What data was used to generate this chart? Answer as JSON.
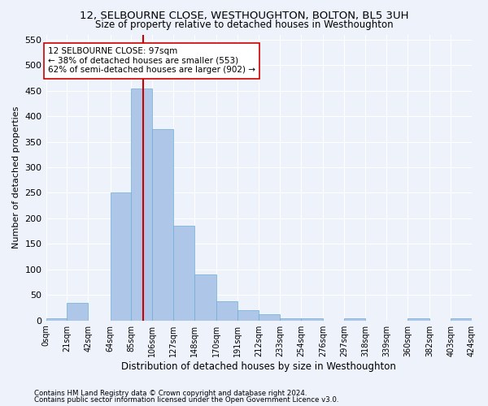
{
  "title": "12, SELBOURNE CLOSE, WESTHOUGHTON, BOLTON, BL5 3UH",
  "subtitle": "Size of property relative to detached houses in Westhoughton",
  "xlabel": "Distribution of detached houses by size in Westhoughton",
  "ylabel": "Number of detached properties",
  "footer_line1": "Contains HM Land Registry data © Crown copyright and database right 2024.",
  "footer_line2": "Contains public sector information licensed under the Open Government Licence v3.0.",
  "bin_edges": [
    0,
    21,
    42,
    64,
    85,
    106,
    127,
    148,
    170,
    191,
    212,
    233,
    254,
    276,
    297,
    318,
    339,
    360,
    382,
    403,
    424
  ],
  "bin_labels": [
    "0sqm",
    "21sqm",
    "42sqm",
    "64sqm",
    "85sqm",
    "106sqm",
    "127sqm",
    "148sqm",
    "170sqm",
    "191sqm",
    "212sqm",
    "233sqm",
    "254sqm",
    "276sqm",
    "297sqm",
    "318sqm",
    "339sqm",
    "360sqm",
    "382sqm",
    "403sqm",
    "424sqm"
  ],
  "bar_heights": [
    4,
    35,
    0,
    250,
    455,
    375,
    185,
    90,
    38,
    20,
    12,
    5,
    5,
    0,
    5,
    0,
    0,
    5,
    0,
    4
  ],
  "bar_color": "#aec6e8",
  "bar_edge_color": "#6aaed6",
  "vline_x": 97,
  "vline_color": "#cc0000",
  "ylim": [
    0,
    560
  ],
  "yticks": [
    0,
    50,
    100,
    150,
    200,
    250,
    300,
    350,
    400,
    450,
    500,
    550
  ],
  "annotation_line1": "12 SELBOURNE CLOSE: 97sqm",
  "annotation_line2": "← 38% of detached houses are smaller (553)",
  "annotation_line3": "62% of semi-detached houses are larger (902) →",
  "annotation_box_color": "#ffffff",
  "annotation_box_edge": "#cc0000",
  "bg_color": "#eef2fb",
  "title_fontsize": 9.5,
  "subtitle_fontsize": 8.5
}
